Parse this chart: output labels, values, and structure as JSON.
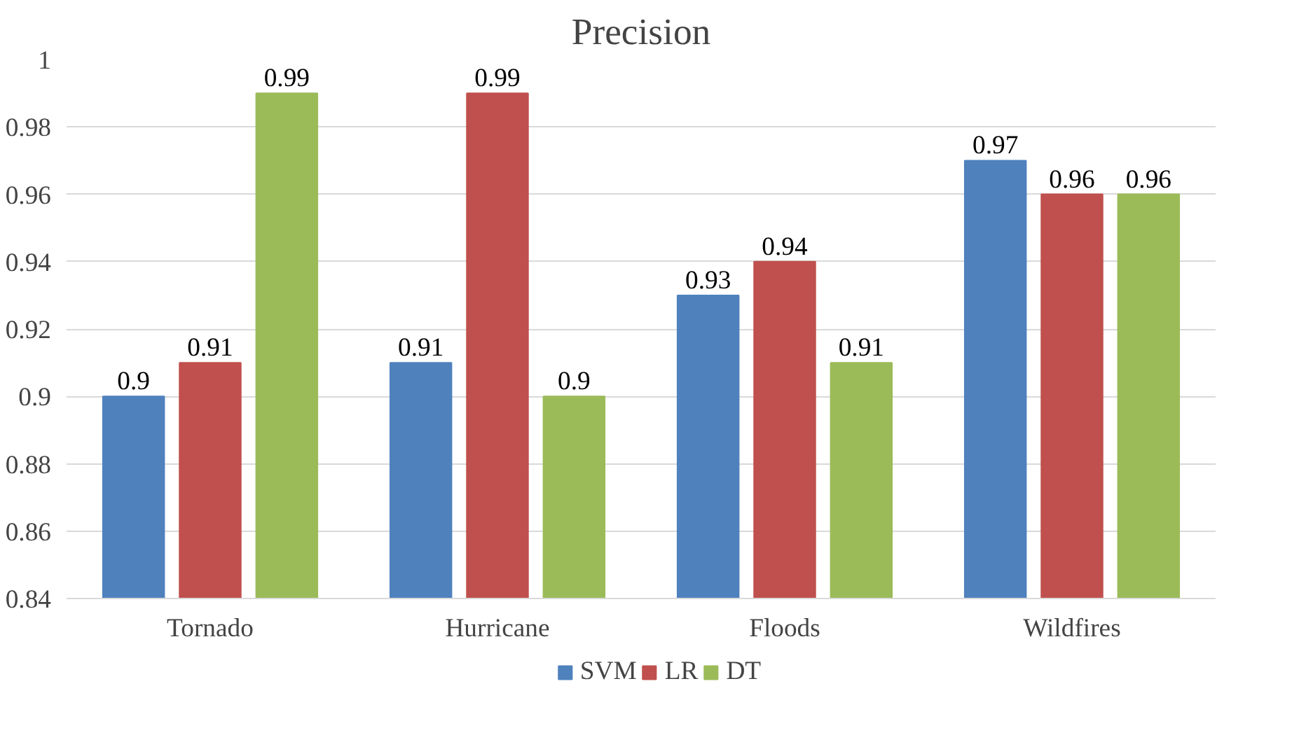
{
  "chart_data": {
    "type": "bar",
    "title": "Precision",
    "categories": [
      "Tornado",
      "Hurricane",
      "Floods",
      "Wildfires"
    ],
    "series": [
      {
        "name": "SVM",
        "color": "#4f81bd",
        "values": [
          0.9,
          0.91,
          0.93,
          0.97
        ]
      },
      {
        "name": "LR",
        "color": "#c0504d",
        "values": [
          0.91,
          0.99,
          0.94,
          0.96
        ]
      },
      {
        "name": "DT",
        "color": "#9bbb59",
        "values": [
          0.99,
          0.9,
          0.91,
          0.96
        ]
      }
    ],
    "ylim": [
      0.84,
      1
    ],
    "yticks": [
      0.84,
      0.86,
      0.88,
      0.9,
      0.92,
      0.94,
      0.96,
      0.98,
      1
    ],
    "grid": "y",
    "legend": "bottom",
    "data_labels": true
  }
}
